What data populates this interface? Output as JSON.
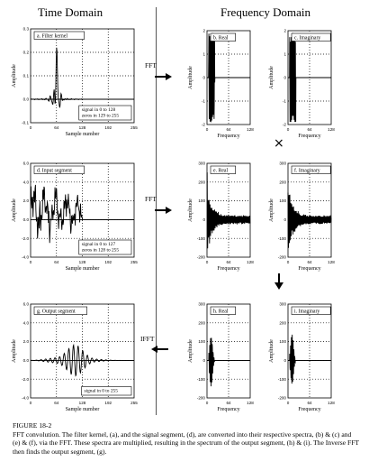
{
  "headers": {
    "time": "Time Domain",
    "frequency": "Frequency Domain"
  },
  "operators": {
    "fft1": "FFT",
    "fft2": "FFT",
    "ifft": "IFFT",
    "multiply": "×"
  },
  "caption": {
    "figure": "FIGURE 18-2",
    "text": "FFT convolution. The filter kernel, (a), and the signal segment, (d), are converted into their respective spectra, (b) & (c) and (e) & (f), via the FFT. These spectra are multiplied, resulting in the spectrum of the output segment, (h) & (i). The Inverse FFT then finds the output segment, (g)."
  },
  "chart_data": [
    {
      "id": "a",
      "type": "line",
      "title": "a. Filter kernel",
      "xlabel": "Sample number",
      "ylabel": "Amplitude",
      "xlim": [
        0,
        255
      ],
      "ylim": [
        -0.1,
        0.3
      ],
      "xticks": [
        "0",
        "64",
        "128",
        "192",
        "255"
      ],
      "yticks": [
        "0.3",
        "0.2",
        "0.1",
        "0.0",
        "-0.1"
      ],
      "annotation": [
        "signal in 0 to 128",
        "zeros in 129 to 255"
      ],
      "signal": "kernel"
    },
    {
      "id": "b",
      "type": "line",
      "title": "b. Real",
      "xlabel": "Frequency",
      "ylabel": "Amplitude",
      "xlim": [
        0,
        128
      ],
      "ylim": [
        -2,
        2
      ],
      "xticks": [
        "0",
        "64",
        "128"
      ],
      "yticks": [
        "2",
        "1",
        "0",
        "-1",
        "-2"
      ],
      "signal": "kernel_real"
    },
    {
      "id": "c",
      "type": "line",
      "title": "c. Imaginary",
      "xlabel": "Frequency",
      "ylabel": "Amplitude",
      "xlim": [
        0,
        128
      ],
      "ylim": [
        -2,
        2
      ],
      "xticks": [
        "0",
        "64",
        "128"
      ],
      "yticks": [
        "2",
        "1",
        "0",
        "-1",
        "-2"
      ],
      "signal": "kernel_imag"
    },
    {
      "id": "d",
      "type": "line",
      "title": "d. Input segment",
      "xlabel": "Sample number",
      "ylabel": "Amplitude",
      "xlim": [
        0,
        255
      ],
      "ylim": [
        -4,
        6
      ],
      "xticks": [
        "0",
        "64",
        "128",
        "192",
        "255"
      ],
      "yticks": [
        "6.0",
        "4.0",
        "2.0",
        "0.0",
        "-2.0",
        "-4.0"
      ],
      "annotation": [
        "signal in 0 to 127",
        "zeros in 128 to 255"
      ],
      "signal": "input"
    },
    {
      "id": "e",
      "type": "line",
      "title": "e. Real",
      "xlabel": "Frequency",
      "ylabel": "Amplitude",
      "xlim": [
        0,
        128
      ],
      "ylim": [
        -200,
        300
      ],
      "xticks": [
        "0",
        "64",
        "128"
      ],
      "yticks": [
        "300",
        "200",
        "100",
        "0",
        "-100",
        "-200"
      ],
      "signal": "input_real"
    },
    {
      "id": "f",
      "type": "line",
      "title": "f. Imaginary",
      "xlabel": "Frequency",
      "ylabel": "Amplitude",
      "xlim": [
        0,
        128
      ],
      "ylim": [
        -200,
        300
      ],
      "xticks": [
        "0",
        "64",
        "128"
      ],
      "yticks": [
        "300",
        "200",
        "100",
        "0",
        "-100",
        "-200"
      ],
      "signal": "input_imag"
    },
    {
      "id": "g",
      "type": "line",
      "title": "g. Output segment",
      "xlabel": "Sample number",
      "ylabel": "Amplitude",
      "xlim": [
        0,
        255
      ],
      "ylim": [
        -4,
        6
      ],
      "xticks": [
        "0",
        "64",
        "128",
        "192",
        "255"
      ],
      "yticks": [
        "6.0",
        "4.0",
        "2.0",
        "0.0",
        "-2.0",
        "-4.0"
      ],
      "annotation": [
        "signal in 0 to 255"
      ],
      "signal": "output"
    },
    {
      "id": "h",
      "type": "line",
      "title": "h. Real",
      "xlabel": "Frequency",
      "ylabel": "Amplitude",
      "xlim": [
        0,
        128
      ],
      "ylim": [
        -200,
        300
      ],
      "xticks": [
        "0",
        "64",
        "128"
      ],
      "yticks": [
        "300",
        "200",
        "100",
        "0",
        "-100",
        "-200"
      ],
      "signal": "output_real"
    },
    {
      "id": "i",
      "type": "line",
      "title": "i. Imaginary",
      "xlabel": "Frequency",
      "ylabel": "Amplitude",
      "xlim": [
        0,
        128
      ],
      "ylim": [
        -200,
        300
      ],
      "xticks": [
        "0",
        "64",
        "128"
      ],
      "yticks": [
        "300",
        "200",
        "100",
        "0",
        "-100",
        "-200"
      ],
      "signal": "output_imag"
    }
  ]
}
